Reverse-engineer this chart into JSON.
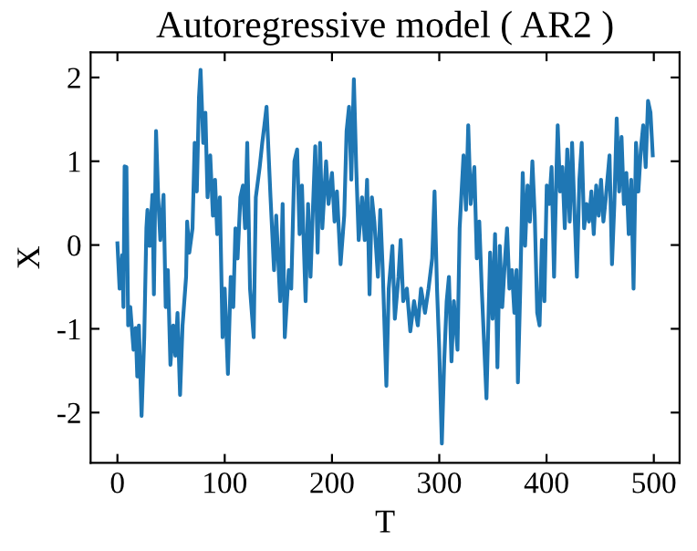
{
  "chart_data": {
    "type": "line",
    "title": "Autoregressive model ( AR2 )",
    "xlabel": "T",
    "ylabel": "X",
    "xlim": [
      -25,
      524
    ],
    "ylim": [
      -2.6,
      2.3
    ],
    "xticks": [
      0,
      100,
      200,
      300,
      400,
      500
    ],
    "yticks": [
      -2,
      -1,
      0,
      1,
      2
    ],
    "grid": false,
    "marker": "none",
    "line_style": "solid",
    "series": [
      {
        "color": "#1f77b4",
        "x": [
          0,
          2,
          4.5,
          5.6,
          6.7,
          8.4,
          10,
          12,
          15,
          17,
          18.5,
          20,
          22.5,
          25,
          27,
          28,
          30,
          32.6,
          34,
          36,
          38,
          40,
          43,
          45,
          47,
          49.4,
          52,
          54,
          56,
          58.4,
          60.7,
          64,
          65,
          67,
          70,
          72,
          74,
          76,
          77.5,
          80,
          82,
          84,
          86.5,
          89,
          91,
          93,
          95.5,
          98,
          100,
          103,
          105.6,
          108,
          110,
          112,
          114.6,
          117,
          119,
          121,
          123.6,
          127,
          129,
          132.6,
          135,
          137,
          139,
          142.7,
          146,
          148,
          151.7,
          154,
          156,
          159.7,
          162,
          165,
          167.5,
          169.8,
          172,
          175.4,
          177.7,
          180,
          182,
          184.4,
          186.6,
          188.9,
          191,
          194.5,
          196.8,
          200,
          202.4,
          204.6,
          208,
          211.4,
          213.6,
          215.9,
          218,
          220.4,
          222.6,
          224.9,
          228,
          230.5,
          232.7,
          235,
          237.2,
          239.5,
          242.8,
          245,
          247.3,
          250.7,
          252.9,
          256.3,
          258.6,
          262,
          264,
          266.4,
          269.8,
          273,
          276.5,
          280,
          283,
          286.7,
          290,
          293.4,
          295.6,
          297.9,
          300,
          302.4,
          304.6,
          306.9,
          309,
          311.4,
          313.6,
          317,
          319,
          322.6,
          324.9,
          327,
          329.3,
          332.7,
          335,
          337.3,
          339.6,
          344,
          347.4,
          349.7,
          352,
          354.2,
          356.4,
          358.7,
          361,
          363.2,
          365.4,
          367.7,
          370,
          372,
          373.3,
          375.5,
          377.8,
          380,
          382.3,
          384.5,
          386.8,
          389,
          391.3,
          393.5,
          395.7,
          398,
          400.2,
          402.5,
          404.7,
          407,
          409.2,
          410.4,
          412.6,
          414.8,
          417,
          419.3,
          421.6,
          423.8,
          426,
          428.3,
          430.6,
          432.8,
          435,
          437.3,
          439.6,
          441.8,
          444,
          446.3,
          448.6,
          450.8,
          453,
          455.3,
          458.7,
          461,
          463.2,
          465.4,
          467.7,
          469.9,
          472.1,
          474.4,
          476.6,
          478.9,
          481.1,
          483.4,
          485.6,
          487.9,
          490.1,
          492.4,
          494.6,
          496.9,
          499
        ],
        "values": [
          0.02,
          -0.52,
          -0.12,
          -0.74,
          0.94,
          0.93,
          -0.96,
          -0.74,
          -1.25,
          -0.99,
          -1.57,
          -0.96,
          -2.04,
          -1.1,
          0.2,
          0.42,
          -0.01,
          0.6,
          -0.59,
          1.36,
          0.57,
          0.06,
          0.6,
          -0.74,
          -0.3,
          -1.43,
          -0.96,
          -1.32,
          -0.81,
          -1.79,
          -0.96,
          -0.38,
          0.28,
          -0.09,
          0.2,
          1.22,
          0.64,
          1.76,
          2.09,
          1.22,
          1.58,
          0.57,
          1.07,
          0.35,
          0.78,
          0.13,
          0.57,
          -1.1,
          -0.52,
          -1.54,
          -0.38,
          -0.74,
          0.2,
          -0.16,
          0.57,
          0.71,
          0.2,
          1.22,
          -0.52,
          -1.1,
          0.57,
          0.93,
          1.22,
          1.43,
          1.65,
          0.57,
          -0.3,
          0.35,
          -0.67,
          0.49,
          -1.1,
          -0.3,
          -0.52,
          1.0,
          1.14,
          0.13,
          0.71,
          -0.67,
          0.49,
          -0.38,
          0.35,
          1.18,
          -0.09,
          1.22,
          0.2,
          1.0,
          0.49,
          0.86,
          0.28,
          0.64,
          -0.23,
          0.35,
          1.36,
          1.65,
          0.78,
          1.98,
          0.93,
          0.06,
          0.57,
          0.06,
          0.78,
          -0.59,
          0.57,
          0.28,
          -0.38,
          0.42,
          -0.3,
          -1.68,
          -0.52,
          -0.01,
          -0.88,
          -0.38,
          0.06,
          -0.67,
          -0.52,
          -1.03,
          -0.67,
          -0.96,
          -0.52,
          -0.81,
          -0.52,
          -0.16,
          0.64,
          -0.52,
          -1.25,
          -2.37,
          -1.39,
          -0.67,
          -0.38,
          -1.39,
          -0.67,
          -1.25,
          0.2,
          1.07,
          0.42,
          1.43,
          0.49,
          0.93,
          -0.16,
          0.28,
          -0.52,
          -1.83,
          -0.09,
          -0.88,
          0.13,
          -1.46,
          -0.01,
          -0.74,
          -0.23,
          0.2,
          -0.52,
          -0.3,
          -0.81,
          -0.3,
          -1.64,
          -0.52,
          0.86,
          -0.01,
          0.71,
          0.28,
          1.0,
          0.35,
          -0.81,
          -0.96,
          0.06,
          -0.67,
          0.71,
          0.49,
          0.93,
          -0.38,
          0.86,
          1.43,
          0.64,
          0.93,
          0.2,
          1.14,
          0.28,
          1.22,
          0.42,
          -0.38,
          0.78,
          1.22,
          0.2,
          0.49,
          0.28,
          0.64,
          0.13,
          0.71,
          0.35,
          0.78,
          0.28,
          0.57,
          1.07,
          -0.23,
          0.49,
          1.51,
          0.64,
          1.29,
          0.49,
          0.86,
          0.13,
          0.78,
          -0.52,
          1.22,
          0.64,
          1.14,
          1.43,
          0.93,
          1.72,
          1.58,
          1.07
        ]
      }
    ]
  }
}
